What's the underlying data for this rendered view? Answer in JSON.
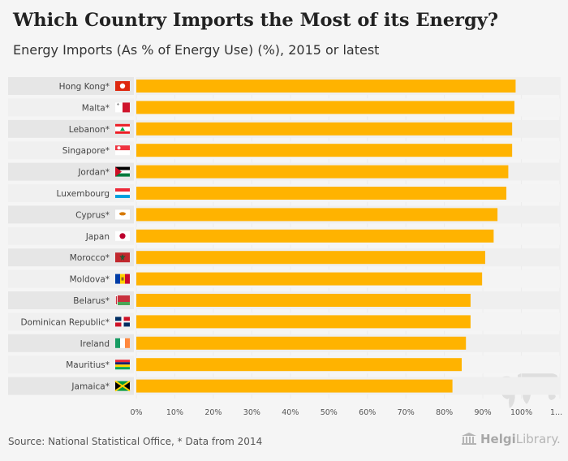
{
  "title": "Which Country Imports the Most of its Energy?",
  "subtitle": "Energy Imports (As % of Energy Use) (%), 2015 or latest",
  "source": "Source: National Statistical Office, * Data from 2014",
  "brand": {
    "bold": "Helgi",
    "rest": "Library."
  },
  "colors": {
    "bar": "#ffb300",
    "row_dark": "#e6e6e6",
    "row_light": "#f0f0f0"
  },
  "chart_data": {
    "type": "bar",
    "orientation": "horizontal",
    "title": "Which Country Imports the Most of its Energy?",
    "ylabel": "Energy Imports (As % of Energy Use) (%)",
    "xlim": [
      0,
      110
    ],
    "ticks": [
      "0%",
      "10%",
      "20%",
      "30%",
      "40%",
      "50%",
      "60%",
      "70%",
      "80%",
      "90%",
      "100%",
      "1..."
    ],
    "categories": [
      "Hong Kong*",
      "Malta*",
      "Lebanon*",
      "Singapore*",
      "Jordan*",
      "Luxembourg",
      "Cyprus*",
      "Japan",
      "Morocco*",
      "Moldova*",
      "Belarus*",
      "Dominican Republic*",
      "Ireland",
      "Mauritius*",
      "Jamaica*"
    ],
    "values": [
      98.5,
      98.2,
      97.6,
      97.6,
      96.6,
      96.1,
      93.8,
      92.8,
      90.6,
      89.8,
      86.8,
      86.8,
      85.6,
      84.5,
      82.1
    ]
  }
}
